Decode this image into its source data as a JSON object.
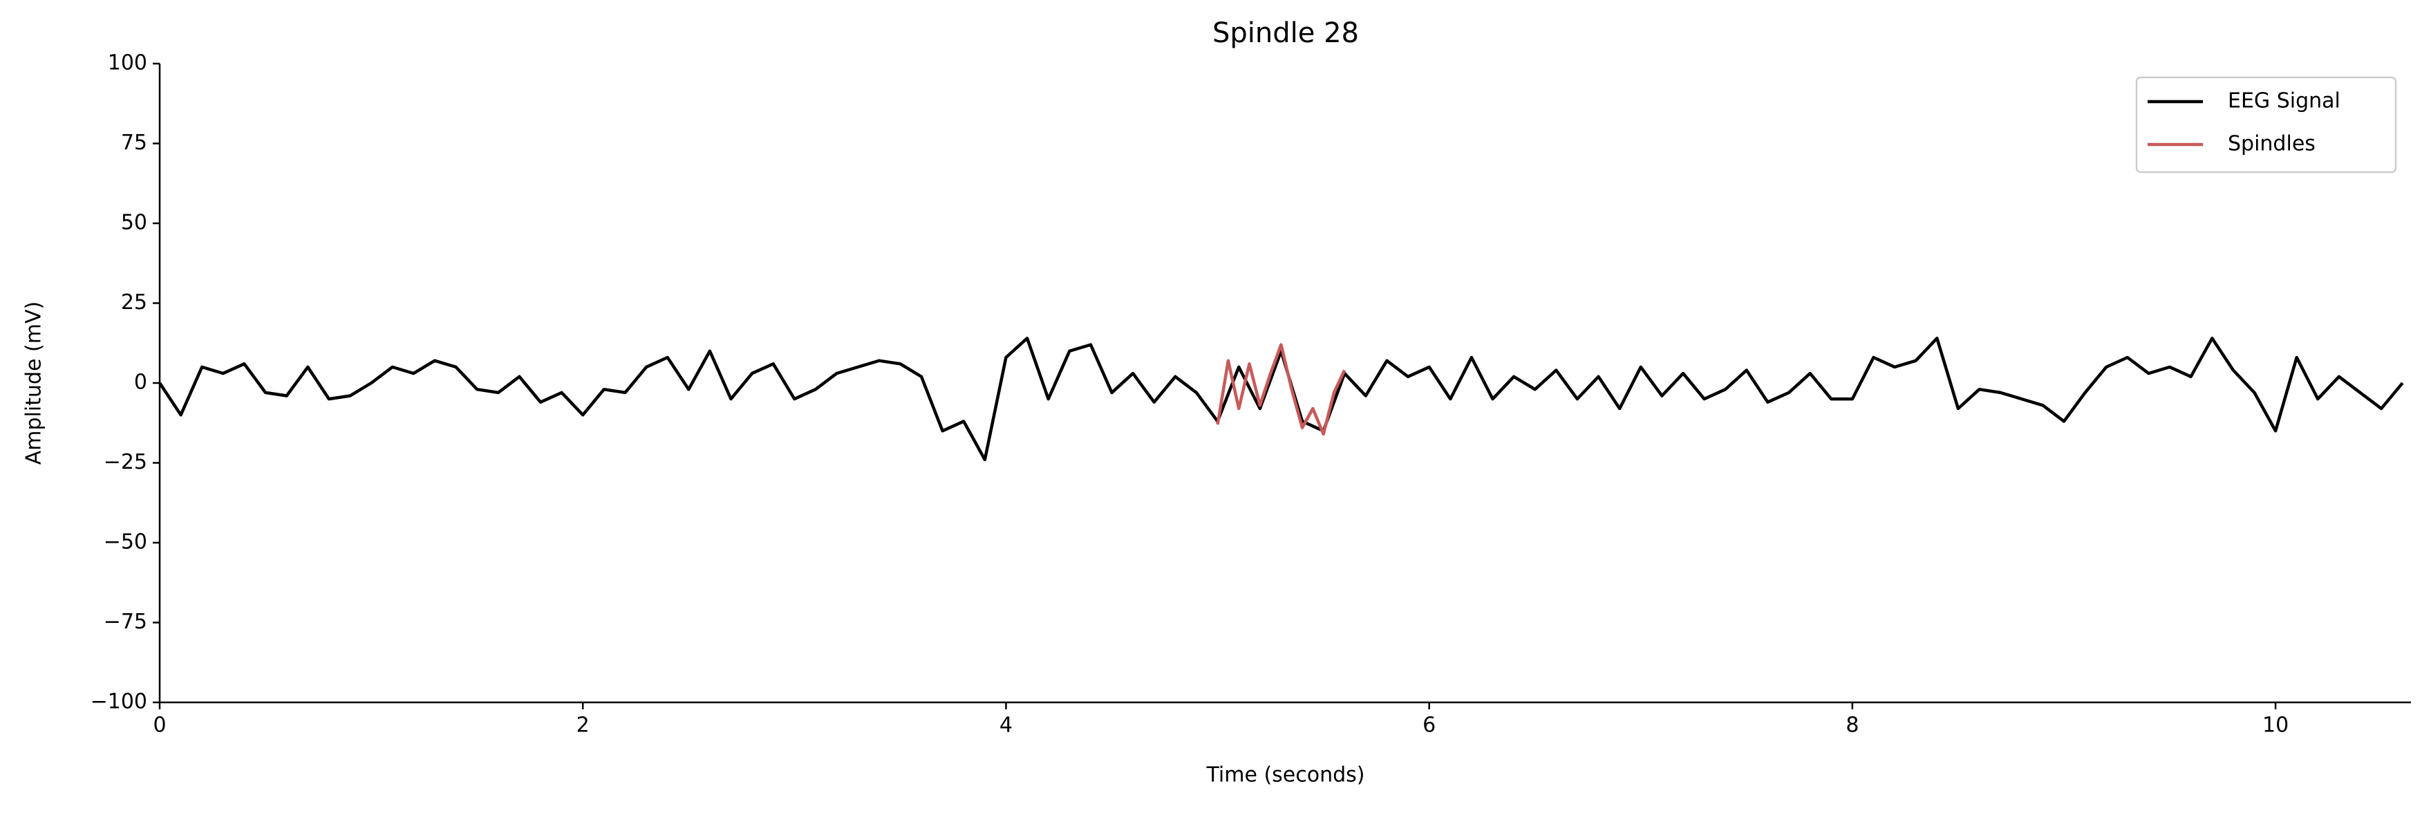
{
  "chart_data": {
    "type": "line",
    "title": "Spindle 28",
    "xlabel": "Time (seconds)",
    "ylabel": "Amplitude (mV)",
    "xlim": [
      0,
      10.64
    ],
    "ylim": [
      -100,
      100
    ],
    "xticks": [
      0,
      2,
      4,
      6,
      8,
      10
    ],
    "yticks": [
      {
        "value": -100,
        "label": "−100"
      },
      {
        "value": -75,
        "label": "−75"
      },
      {
        "value": -50,
        "label": "−50"
      },
      {
        "value": -25,
        "label": "−25"
      },
      0,
      25,
      50,
      75,
      100
    ],
    "legend": "upper right",
    "series": [
      {
        "name": "EEG Signal",
        "color": "#000000",
        "x": [
          0,
          0.1,
          0.2,
          0.3,
          0.4,
          0.5,
          0.6,
          0.7,
          0.8,
          0.9,
          1,
          1.1,
          1.2,
          1.3,
          1.4,
          1.5,
          1.6,
          1.7,
          1.8,
          1.9,
          2,
          2.1,
          2.2,
          2.3,
          2.4,
          2.5,
          2.6,
          2.7,
          2.8,
          2.9,
          3,
          3.1,
          3.2,
          3.3,
          3.4,
          3.5,
          3.6,
          3.7,
          3.8,
          3.9,
          4,
          4.1,
          4.2,
          4.3,
          4.4,
          4.5,
          4.6,
          4.7,
          4.8,
          4.9,
          5,
          5.1,
          5.2,
          5.3,
          5.4,
          5.5,
          5.6,
          5.7,
          5.8,
          5.9,
          6,
          6.1,
          6.2,
          6.3,
          6.4,
          6.5,
          6.6,
          6.7,
          6.8,
          6.9,
          7,
          7.1,
          7.2,
          7.3,
          7.4,
          7.5,
          7.6,
          7.7,
          7.8,
          7.9,
          8,
          8.1,
          8.2,
          8.3,
          8.4,
          8.5,
          8.6,
          8.7,
          8.8,
          8.9,
          9,
          9.1,
          9.2,
          9.3,
          9.4,
          9.5,
          9.6,
          9.7,
          9.8,
          9.9,
          10,
          10.1,
          10.2,
          10.3,
          10.4,
          10.5,
          10.6
        ],
        "values": [
          0,
          -10,
          5,
          3,
          6,
          -3,
          -4,
          5,
          -5,
          -4,
          0,
          5,
          3,
          7,
          5,
          -2,
          -3,
          2,
          -6,
          -3,
          -10,
          -2,
          -3,
          5,
          8,
          -2,
          10,
          -5,
          3,
          6,
          -5,
          -2,
          3,
          5,
          7,
          6,
          2,
          -15,
          -12,
          -24,
          8,
          14,
          -5,
          10,
          12,
          -3,
          3,
          -6,
          2,
          -3,
          -12,
          5,
          -8,
          10,
          -12,
          -15,
          3,
          -4,
          7,
          2,
          5,
          -5,
          8,
          -5,
          2,
          -2,
          4,
          -5,
          2,
          -8,
          5,
          -4,
          3,
          -5,
          -2,
          4,
          -6,
          -3,
          3,
          -5,
          -5,
          8,
          5,
          7,
          14,
          -8,
          -2,
          -3,
          -5,
          -7,
          -12,
          -3,
          5,
          8,
          3,
          5,
          2,
          14,
          4,
          -3,
          -15,
          8,
          -5,
          2,
          -3,
          -8,
          0
        ]
      },
      {
        "name": "Spindles",
        "color": "#c85a5a",
        "x": [
          5,
          5.05,
          5.1,
          5.15,
          5.2,
          5.25,
          5.3,
          5.35,
          5.4,
          5.45,
          5.5,
          5.55,
          5.6
        ],
        "values": [
          -13,
          7,
          -8,
          6,
          -7,
          3,
          12,
          -2,
          -14,
          -8,
          -16,
          -3,
          4
        ]
      }
    ]
  }
}
